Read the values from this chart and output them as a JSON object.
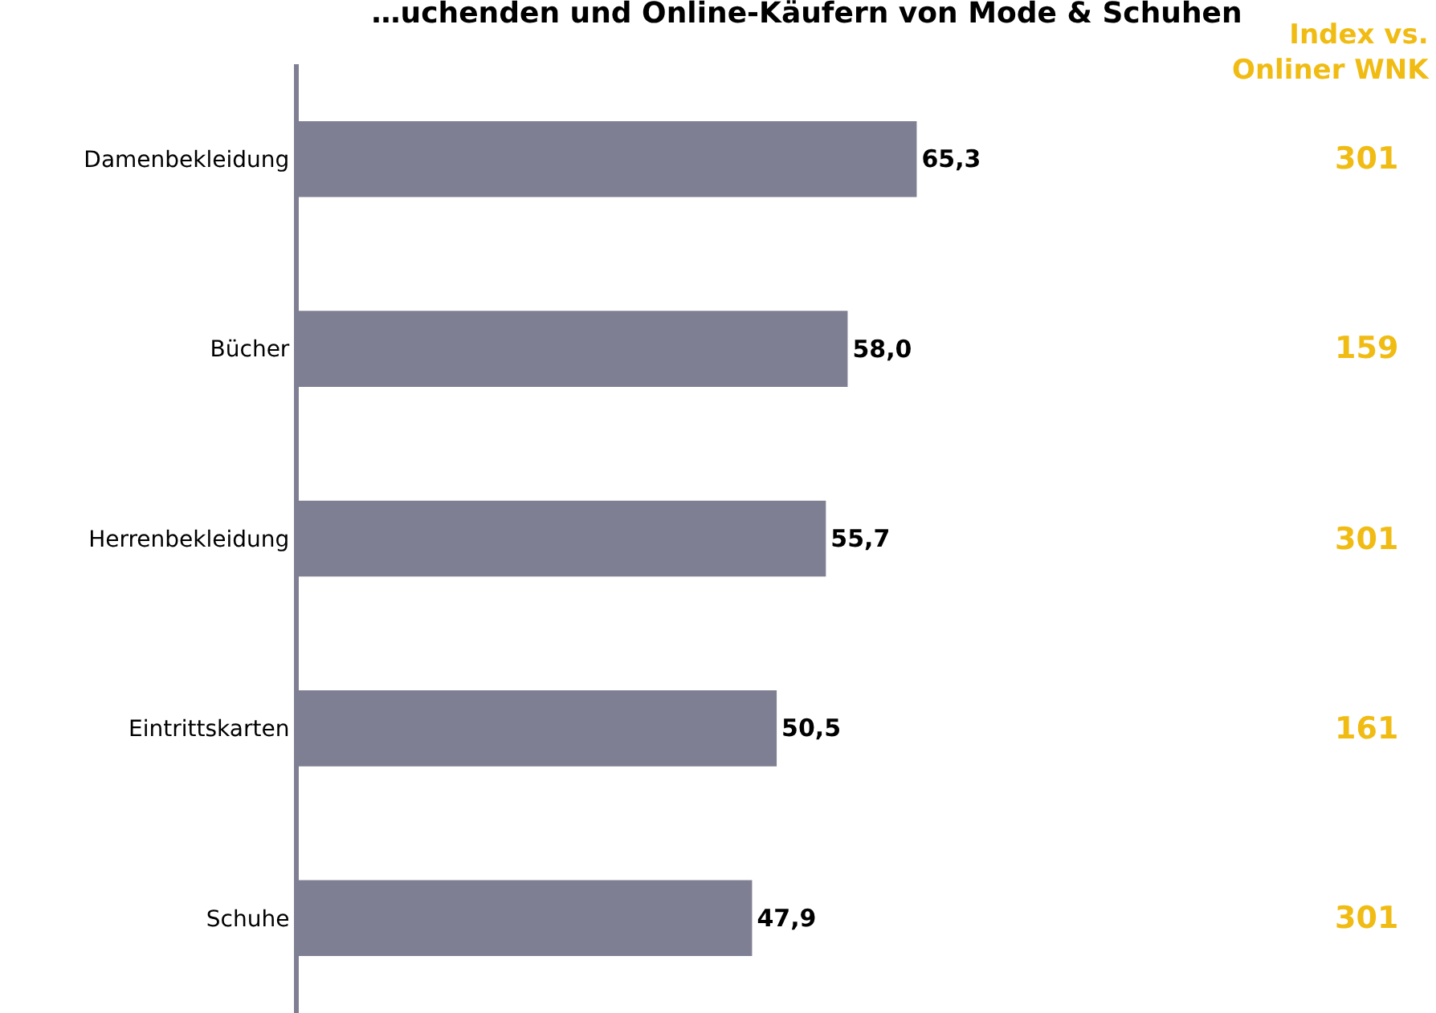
{
  "chart_data": {
    "type": "bar",
    "orientation": "horizontal",
    "title": "…uchenden und Online-Käufern von Mode & Schuhen",
    "categories": [
      "Damenbekleidung",
      "Bücher",
      "Herrenbekleidung",
      "Eintrittskarten",
      "Schuhe"
    ],
    "values": [
      65.3,
      58.0,
      55.7,
      50.5,
      47.9
    ],
    "value_labels": [
      "65,3",
      "58,0",
      "55,7",
      "50,5",
      "47,9"
    ],
    "color": "#7f7f93",
    "legend": false,
    "grid": false,
    "annotations": [
      "Index vs.\nOnliner WNK",
      "301",
      "159",
      "301",
      "161",
      "301"
    ]
  }
}
